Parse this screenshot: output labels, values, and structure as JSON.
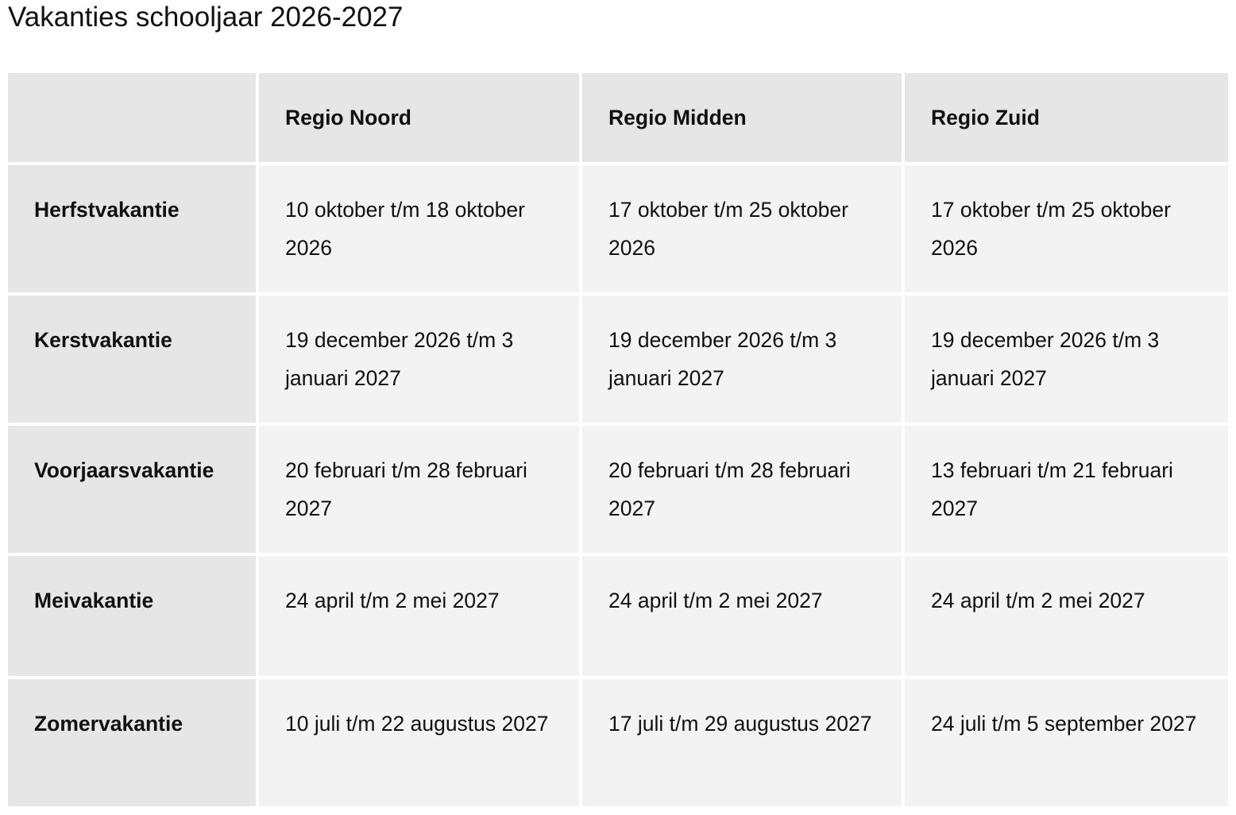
{
  "title": "Vakanties schooljaar 2026-2027",
  "table": {
    "columns": [
      "",
      "Regio Noord",
      "Regio Midden",
      "Regio Zuid"
    ],
    "rows": [
      {
        "label": "Herfstvakantie",
        "values": [
          "10 oktober t/m 18 oktober 2026",
          "17 oktober t/m 25 oktober 2026",
          "17 oktober t/m 25 oktober 2026"
        ]
      },
      {
        "label": "Kerstvakantie",
        "values": [
          "19 december 2026 t/m 3 januari 2027",
          "19 december 2026 t/m 3 januari 2027",
          "19 december 2026 t/m 3 januari 2027"
        ]
      },
      {
        "label": "Voorjaarsvakantie",
        "values": [
          "20 februari t/m 28 februari 2027",
          "20 februari t/m 28 februari 2027",
          "13 februari t/m 21 februari 2027"
        ]
      },
      {
        "label": "Meivakantie",
        "values": [
          "24 april t/m 2 mei 2027",
          "24 april t/m 2 mei 2027",
          "24 april t/m 2 mei 2027"
        ]
      },
      {
        "label": "Zomervakantie",
        "values": [
          "10 juli t/m 22 augustus 2027",
          "17 juli t/m 29 augustus 2027",
          "24 juli t/m 5 september 2027"
        ]
      }
    ]
  },
  "colors": {
    "header_bg": "#e6e6e6",
    "cell_bg": "#f3f3f3"
  }
}
